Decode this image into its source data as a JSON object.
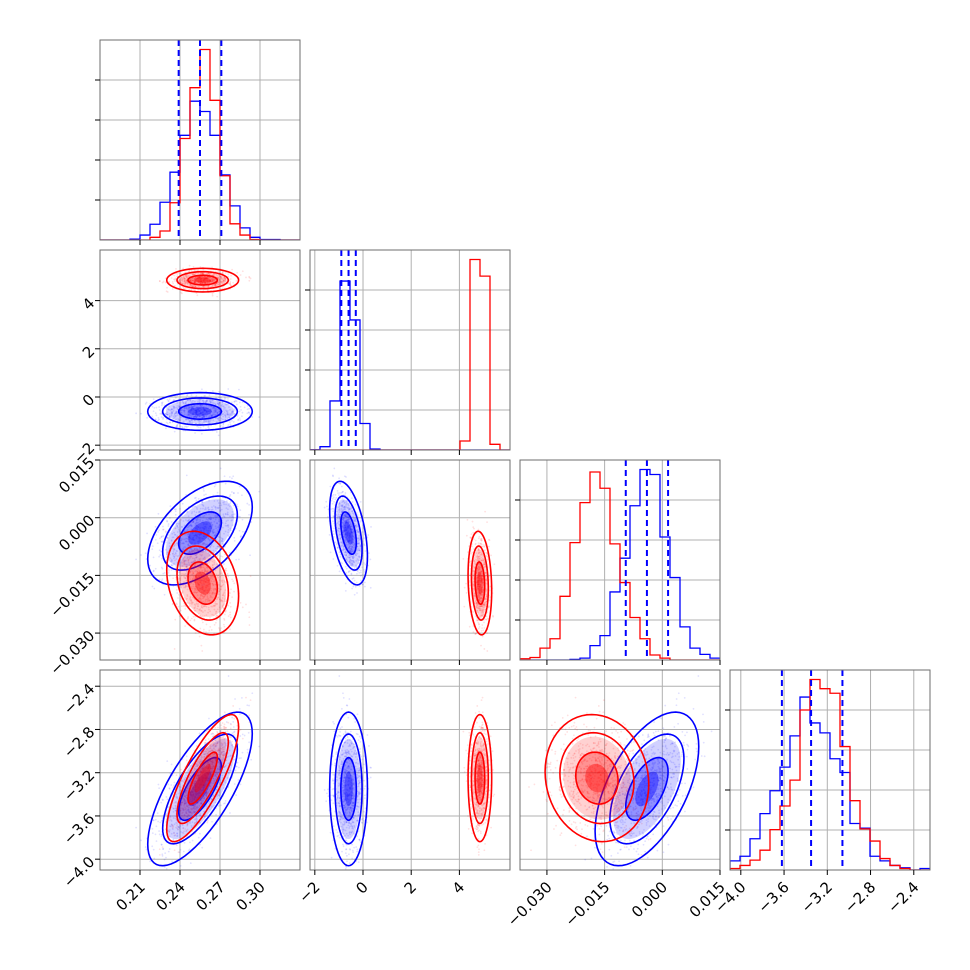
{
  "chart_data": {
    "type": "corner",
    "title": "",
    "parameters": [
      {
        "label": "",
        "range": [
          0.18,
          0.33
        ],
        "ticks": [
          0.21,
          0.24,
          0.27,
          0.3
        ],
        "tick_labels": [
          "0.21",
          "0.24",
          "0.27",
          "0.30"
        ]
      },
      {
        "label": "",
        "range": [
          -2.2,
          6.1
        ],
        "ticks": [
          -2,
          0,
          2,
          4
        ],
        "tick_labels": [
          "−2",
          "0",
          "2",
          "4"
        ]
      },
      {
        "label": "",
        "range": [
          -0.037,
          0.015
        ],
        "ticks": [
          -0.03,
          -0.015,
          0.0,
          0.015
        ],
        "tick_labels": [
          "−0.030",
          "−0.015",
          "0.000",
          "0.015"
        ]
      },
      {
        "label": "",
        "range": [
          -4.1,
          -2.25
        ],
        "ticks": [
          -4.0,
          -3.6,
          -3.2,
          -2.8,
          -2.4
        ],
        "tick_labels": [
          "−4.0",
          "−3.6",
          "−3.2",
          "−2.8",
          "−2.4"
        ]
      }
    ],
    "series": [
      {
        "color": "#0000ff",
        "quantiles_marked": "blue",
        "mean": [
          0.255,
          -0.6,
          -0.004,
          -3.35
        ],
        "sd": [
          0.016,
          0.32,
          0.0055,
          0.29
        ],
        "corr": [
          [
            1,
            0,
            0.5,
            0.72
          ],
          [
            0,
            1,
            -0.45,
            0
          ],
          [
            0.5,
            -0.45,
            1,
            0.55
          ],
          [
            0.72,
            0,
            0.55,
            1
          ]
        ]
      },
      {
        "color": "#ff0000",
        "mean": [
          0.257,
          4.85,
          -0.017,
          -3.25
        ],
        "sd": [
          0.011,
          0.2,
          0.0055,
          0.24
        ],
        "corr": [
          [
            1,
            0,
            -0.25,
            0.8
          ],
          [
            0,
            1,
            -0.15,
            0
          ],
          [
            -0.25,
            -0.15,
            1,
            -0.1
          ],
          [
            0.8,
            0,
            -0.1,
            1
          ]
        ]
      }
    ],
    "quantile_lines": [
      [
        0.239,
        0.255,
        0.271
      ],
      [
        -0.9,
        -0.6,
        -0.3
      ],
      [
        -0.0095,
        -0.004,
        0.0015
      ],
      [
        -3.62,
        -3.35,
        -3.06
      ]
    ],
    "grid": true,
    "legend": "none"
  }
}
